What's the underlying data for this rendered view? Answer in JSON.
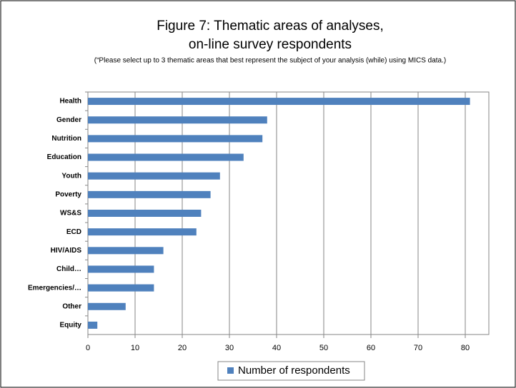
{
  "chart_data": {
    "type": "bar",
    "orientation": "horizontal",
    "title": [
      "Figure 7:  Thematic areas of analyses,",
      "on-line survey respondents"
    ],
    "subtitle": "(“Please select up to 3 thematic areas that best represent the subject of your analysis (while) using MICS data.)",
    "categories": [
      "Health",
      "Gender",
      "Nutrition",
      "Education",
      "Youth",
      "Poverty",
      "WS&S",
      "ECD",
      "HIV/AIDS",
      "Child…",
      "Emergencies/…",
      "Other",
      "Equity"
    ],
    "series": [
      {
        "name": "Number of respondents",
        "color": "#4f81bd",
        "values": [
          81,
          38,
          37,
          33,
          28,
          26,
          24,
          23,
          16,
          14,
          14,
          8,
          2
        ]
      }
    ],
    "xlim": [
      0,
      85
    ],
    "xticks": [
      0,
      10,
      20,
      30,
      40,
      50,
      60,
      70,
      80
    ],
    "grid": true,
    "legend": "bottom"
  }
}
